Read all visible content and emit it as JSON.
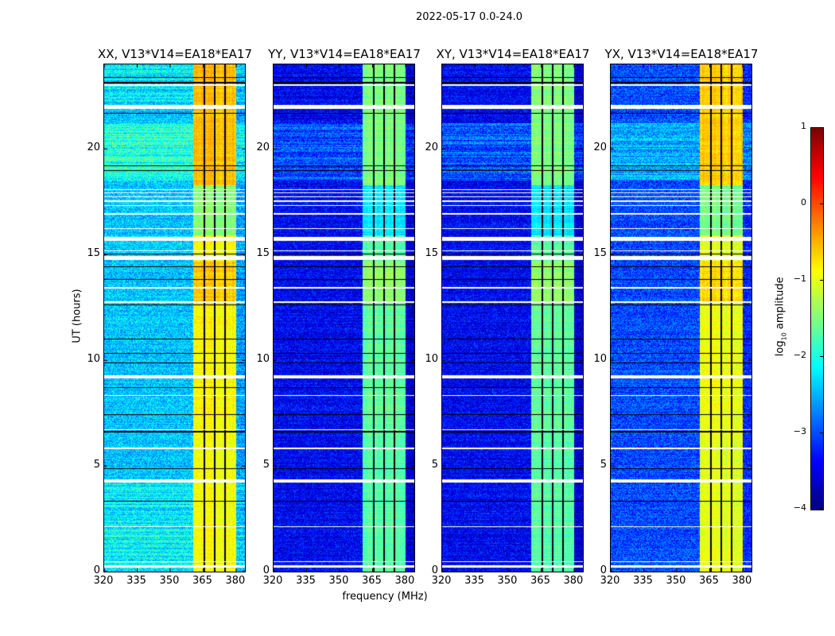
{
  "chart_data": {
    "type": "heatmap",
    "title": "2022-05-17 0.0-24.0",
    "xlabel": "frequency (MHz)",
    "ylabel": "UT (hours)",
    "xlim": [
      320,
      384
    ],
    "ylim": [
      0,
      24
    ],
    "xticks": [
      320,
      335,
      350,
      365,
      380
    ],
    "yticks": [
      0,
      5,
      10,
      15,
      20
    ],
    "colormap": "jet",
    "colorbar": {
      "label_prefix": "log",
      "label_sub": "10",
      "label_suffix": " amplitude",
      "range": [
        -4,
        1
      ],
      "ticks": [
        1,
        0,
        -1,
        -2,
        -3,
        -4
      ],
      "tick_labels": [
        "1",
        "0",
        "−1",
        "−2",
        "−3",
        "−4"
      ],
      "placement": "right"
    },
    "band_mhz": [
      360.5,
      380
    ],
    "channel_boundaries_mhz": [
      365.5,
      370.2,
      374.9
    ],
    "flagged_hours": [
      [
        0.2,
        0.3
      ],
      [
        0.45,
        0.5
      ],
      [
        2.1,
        2.15
      ],
      [
        4.2,
        4.35
      ],
      [
        5.8,
        5.85
      ],
      [
        6.7,
        6.75
      ],
      [
        8.3,
        8.35
      ],
      [
        9.15,
        9.3
      ],
      [
        12.7,
        12.8
      ],
      [
        13.4,
        13.45
      ],
      [
        14.75,
        14.95
      ],
      [
        15.15,
        15.2
      ],
      [
        15.65,
        15.85
      ],
      [
        16.2,
        16.25
      ],
      [
        16.9,
        16.95
      ],
      [
        17.3,
        17.35
      ],
      [
        17.5,
        17.55
      ],
      [
        17.7,
        17.75
      ],
      [
        17.9,
        17.95
      ],
      [
        18.05,
        18.1
      ],
      [
        21.9,
        22.1
      ],
      [
        23.0,
        23.05
      ]
    ],
    "gap_hours": [
      [
        1.5,
        1.52
      ],
      [
        3.3,
        3.33
      ],
      [
        4.85,
        4.88
      ],
      [
        6.6,
        6.64
      ],
      [
        7.4,
        7.43
      ],
      [
        8.7,
        8.74
      ],
      [
        9.85,
        9.9
      ],
      [
        10.3,
        10.34
      ],
      [
        11.0,
        11.03
      ],
      [
        12.6,
        12.65
      ],
      [
        13.8,
        13.84
      ],
      [
        14.4,
        14.45
      ],
      [
        15.0,
        15.03
      ],
      [
        18.95,
        19.0
      ],
      [
        19.2,
        19.23
      ],
      [
        20.3,
        20.33
      ],
      [
        21.65,
        21.7
      ],
      [
        23.1,
        23.16
      ],
      [
        23.35,
        23.38
      ]
    ],
    "panels": [
      {
        "title": "XX, V13*V14=EA18*EA17",
        "background_log_amp": -2.4,
        "band_log_amp": -0.9
      },
      {
        "title": "YY, V13*V14=EA18*EA17",
        "background_log_amp": -3.4,
        "band_log_amp": -1.7
      },
      {
        "title": "XY, V13*V14=EA18*EA17",
        "background_log_amp": -3.4,
        "band_log_amp": -1.7
      },
      {
        "title": "YX, V13*V14=EA18*EA17",
        "background_log_amp": -3.0,
        "band_log_amp": -1.0
      }
    ]
  }
}
